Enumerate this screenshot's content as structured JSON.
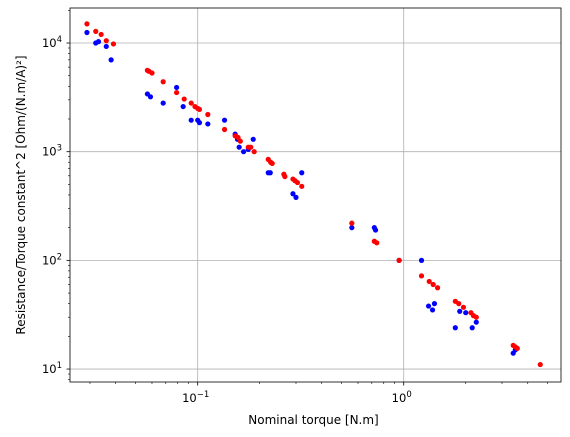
{
  "chart_data": {
    "type": "scatter",
    "xlabel": "Nominal torque [N.m]",
    "ylabel": "Resistance/Torque constant^2 [Ohm/(N.m/A)²]",
    "xscale": "log",
    "yscale": "log",
    "xlim": [
      0.024,
      5.8
    ],
    "ylim": [
      7.6,
      21000
    ],
    "grid": true,
    "x_ticks": [
      {
        "value": 0.1,
        "base": "10",
        "exp": "−1"
      },
      {
        "value": 1,
        "base": "10",
        "exp": "0"
      }
    ],
    "y_ticks": [
      {
        "value": 10,
        "base": "10",
        "exp": "1"
      },
      {
        "value": 100,
        "base": "10",
        "exp": "2"
      },
      {
        "value": 1000,
        "base": "10",
        "exp": "3"
      },
      {
        "value": 10000,
        "base": "10",
        "exp": "4"
      }
    ],
    "series": [
      {
        "color": "#0000ff",
        "points": [
          [
            0.029,
            12500
          ],
          [
            0.032,
            10000
          ],
          [
            0.033,
            10300
          ],
          [
            0.036,
            9300
          ],
          [
            0.038,
            7000
          ],
          [
            0.057,
            3400
          ],
          [
            0.059,
            3200
          ],
          [
            0.068,
            2800
          ],
          [
            0.079,
            3900
          ],
          [
            0.085,
            2600
          ],
          [
            0.093,
            1950
          ],
          [
            0.1,
            1950
          ],
          [
            0.102,
            1850
          ],
          [
            0.112,
            1800
          ],
          [
            0.135,
            1950
          ],
          [
            0.152,
            1450
          ],
          [
            0.156,
            1300
          ],
          [
            0.159,
            1100
          ],
          [
            0.167,
            1000
          ],
          [
            0.176,
            1050
          ],
          [
            0.186,
            1300
          ],
          [
            0.22,
            640
          ],
          [
            0.225,
            640
          ],
          [
            0.29,
            410
          ],
          [
            0.3,
            380
          ],
          [
            0.32,
            640
          ],
          [
            0.56,
            200
          ],
          [
            0.72,
            200
          ],
          [
            0.73,
            190
          ],
          [
            0.95,
            100
          ],
          [
            1.22,
            100
          ],
          [
            1.32,
            38
          ],
          [
            1.38,
            35
          ],
          [
            1.41,
            40
          ],
          [
            1.78,
            24
          ],
          [
            1.87,
            34
          ],
          [
            2.0,
            33
          ],
          [
            2.15,
            24
          ],
          [
            2.25,
            27
          ],
          [
            3.4,
            14
          ],
          [
            3.48,
            15
          ]
        ]
      },
      {
        "color": "#ff0000",
        "points": [
          [
            0.029,
            15000
          ],
          [
            0.032,
            12800
          ],
          [
            0.034,
            12000
          ],
          [
            0.036,
            10500
          ],
          [
            0.039,
            9800
          ],
          [
            0.057,
            5600
          ],
          [
            0.058,
            5500
          ],
          [
            0.06,
            5300
          ],
          [
            0.068,
            4400
          ],
          [
            0.079,
            3500
          ],
          [
            0.086,
            3050
          ],
          [
            0.093,
            2800
          ],
          [
            0.097,
            2600
          ],
          [
            0.1,
            2500
          ],
          [
            0.102,
            2450
          ],
          [
            0.112,
            2200
          ],
          [
            0.135,
            1600
          ],
          [
            0.152,
            1400
          ],
          [
            0.157,
            1350
          ],
          [
            0.161,
            1250
          ],
          [
            0.176,
            1100
          ],
          [
            0.181,
            1100
          ],
          [
            0.188,
            1000
          ],
          [
            0.22,
            850
          ],
          [
            0.226,
            800
          ],
          [
            0.23,
            780
          ],
          [
            0.262,
            620
          ],
          [
            0.265,
            590
          ],
          [
            0.29,
            560
          ],
          [
            0.297,
            540
          ],
          [
            0.305,
            520
          ],
          [
            0.32,
            480
          ],
          [
            0.56,
            220
          ],
          [
            0.72,
            150
          ],
          [
            0.74,
            145
          ],
          [
            0.95,
            100
          ],
          [
            1.22,
            72
          ],
          [
            1.33,
            64
          ],
          [
            1.39,
            60
          ],
          [
            1.46,
            56
          ],
          [
            1.78,
            42
          ],
          [
            1.85,
            40
          ],
          [
            1.95,
            37
          ],
          [
            2.12,
            33
          ],
          [
            2.18,
            31
          ],
          [
            2.25,
            30
          ],
          [
            3.4,
            16.5
          ],
          [
            3.48,
            16
          ],
          [
            3.56,
            15.5
          ],
          [
            4.6,
            11
          ]
        ]
      }
    ]
  }
}
